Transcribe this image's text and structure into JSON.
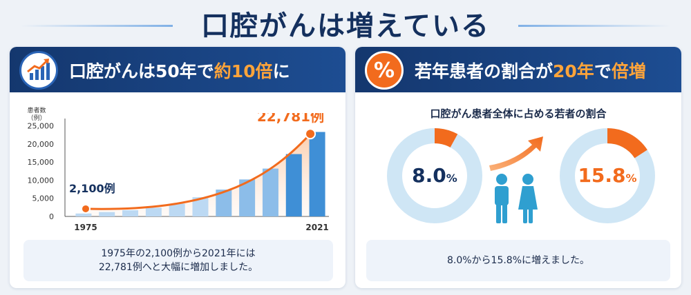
{
  "main_title": "口腔がんは増えている",
  "left_panel": {
    "header_prefix": "口腔がんは50年で",
    "header_highlight": "約10倍",
    "header_suffix": "に",
    "y_unit_line1": "患者数",
    "y_unit_line2": "（例）",
    "caption_line1": "1975年の2,100例から2021年には",
    "caption_line2": "22,781例へと大幅に増加しました。"
  },
  "right_panel": {
    "header_prefix": "若年患者の割合が",
    "header_highlight": "20年",
    "header_mid": "で",
    "header_highlight2": "倍増",
    "subtitle": "口腔がん患者全体に占める若者の割合",
    "caption": "8.0%から15.8%に増えました。"
  },
  "colors": {
    "navy": "#14376e",
    "orange": "#f26b1d",
    "bar_light": "#cfe3f6",
    "bar_dark": "#3f8fd6",
    "donut_track": "#cfe6f5",
    "donut_fill": "#f26b1d",
    "male_figure": "#2f9fd0",
    "female_figure": "#2f9fd0"
  },
  "icons": [
    "growth-chart-icon",
    "percent-icon",
    "arrow-up-right-icon",
    "male-figure-icon",
    "female-figure-icon"
  ],
  "chart_data": [
    {
      "type": "bar",
      "ylim": [
        0,
        27000
      ],
      "yticks": [
        0,
        5000,
        10000,
        15000,
        20000,
        25000
      ],
      "ytick_labels": [
        "0",
        "5,000",
        "10,000",
        "15,000",
        "20,000",
        "25,000"
      ],
      "x_tick_labels": [
        "1975",
        "2021"
      ],
      "bar_values": [
        800,
        1200,
        1700,
        2400,
        3500,
        5300,
        7400,
        10200,
        13200,
        17200,
        23300
      ],
      "trend_points": [
        {
          "label": "1975",
          "value": 2100,
          "data_label": "2,100例"
        },
        {
          "label": "2021",
          "value": 22781,
          "data_label": "22,781例"
        }
      ],
      "grid": false
    },
    {
      "type": "pie",
      "slices": [
        {
          "name": "",
          "value": 8.0,
          "label": "8.0",
          "unit": "%"
        },
        {
          "name": "",
          "value": 15.8,
          "label": "15.8",
          "unit": "%"
        }
      ]
    }
  ]
}
